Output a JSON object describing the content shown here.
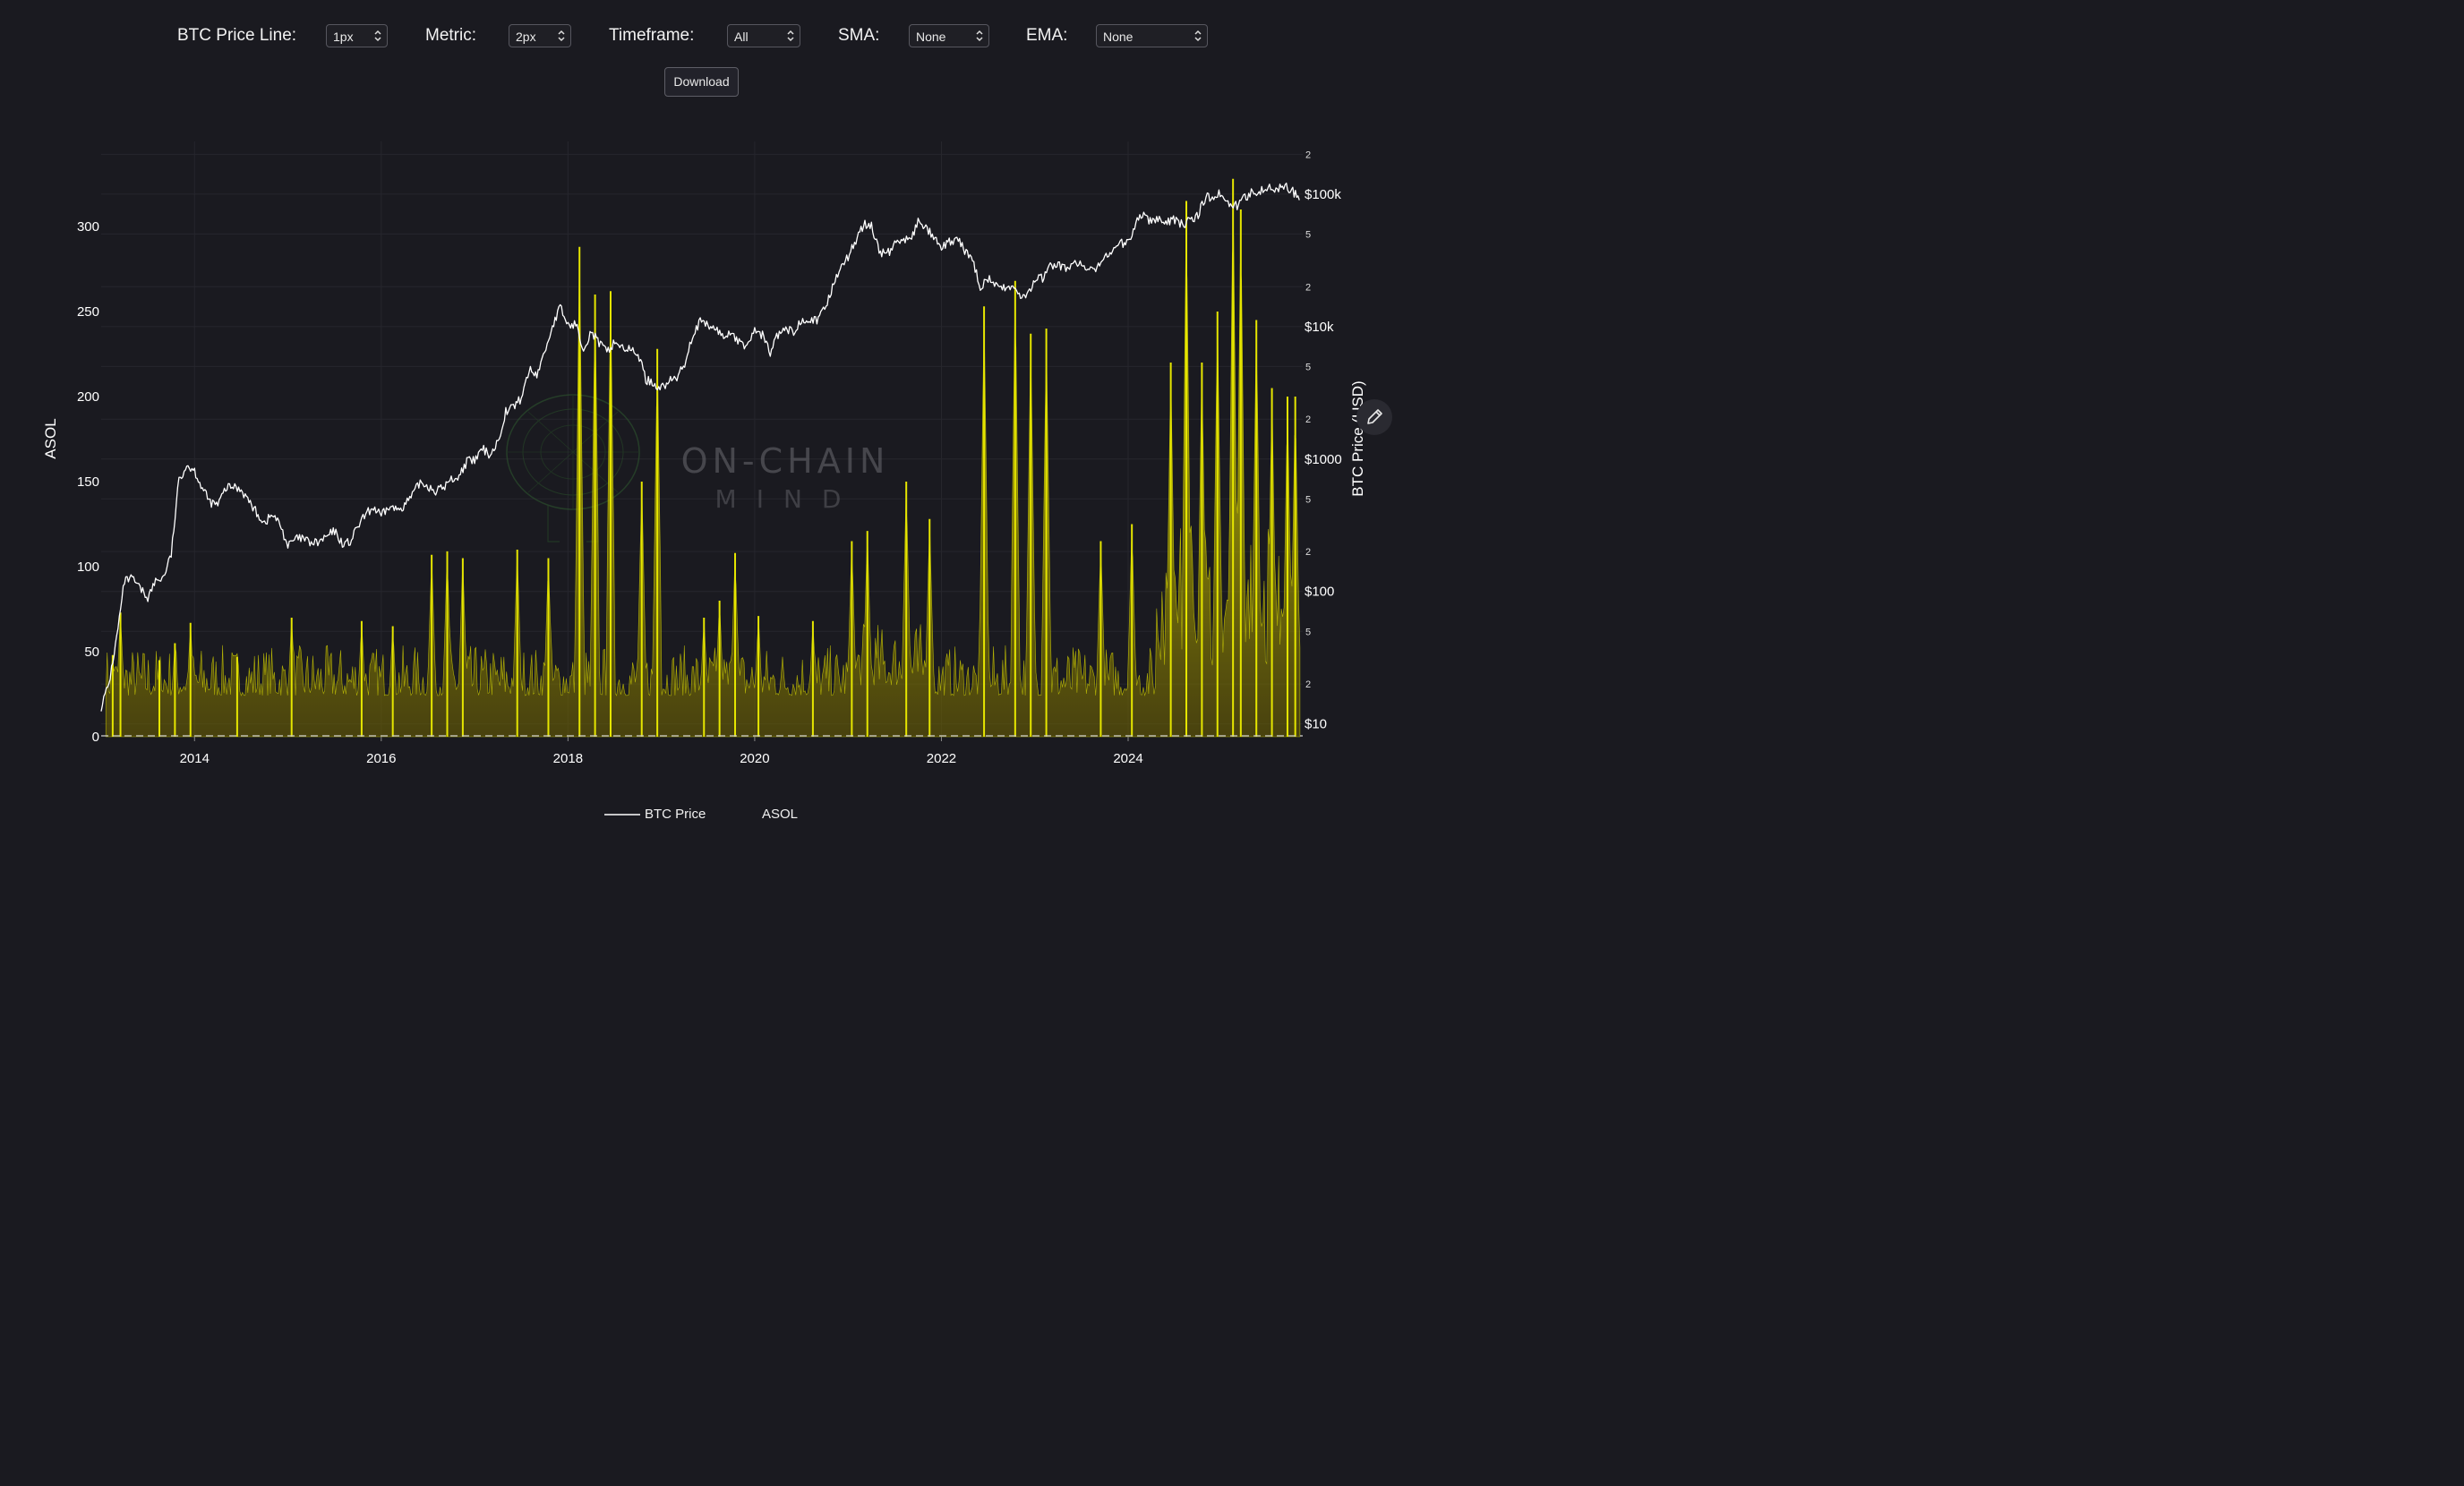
{
  "controls": {
    "btc_line": {
      "label": "BTC Price Line:",
      "value": "1px"
    },
    "metric": {
      "label": "Metric:",
      "value": "2px"
    },
    "timeframe": {
      "label": "Timeframe:",
      "value": "All"
    },
    "sma": {
      "label": "SMA:",
      "value": "None"
    },
    "ema": {
      "label": "EMA:",
      "value": "None"
    },
    "download_label": "Download"
  },
  "watermark": {
    "line1": "ON-CHAIN",
    "line2": "MIND"
  },
  "colors": {
    "background": "#1a1a20",
    "price_line": "#ffffff",
    "metric": "#e6e600",
    "grid": "#26262d"
  },
  "chart_data": {
    "type": "line",
    "title": "",
    "xlabel": "",
    "x_ticks": [
      "2014",
      "2016",
      "2018",
      "2020",
      "2022",
      "2024"
    ],
    "x_range": [
      "2013-01",
      "2025-11"
    ],
    "y_left": {
      "label": "ASOL",
      "range": [
        0,
        350
      ],
      "ticks": [
        0,
        50,
        100,
        150,
        200,
        250,
        300
      ]
    },
    "y_right": {
      "label": "BTC Price (USD)",
      "scale": "log",
      "range": [
        8,
        250000
      ],
      "major_ticks": [
        {
          "value": 10,
          "label": "$10"
        },
        {
          "value": 100,
          "label": "$100"
        },
        {
          "value": 1000,
          "label": "$1000"
        },
        {
          "value": 10000,
          "label": "$10k"
        },
        {
          "value": 100000,
          "label": "$100k"
        }
      ],
      "minor_ticks": [
        {
          "value": 20,
          "label": "2"
        },
        {
          "value": 50,
          "label": "5"
        },
        {
          "value": 200,
          "label": "2"
        },
        {
          "value": 500,
          "label": "5"
        },
        {
          "value": 2000,
          "label": "2"
        },
        {
          "value": 5000,
          "label": "5"
        },
        {
          "value": 20000,
          "label": "2"
        },
        {
          "value": 50000,
          "label": "5"
        },
        {
          "value": 200000,
          "label": "2"
        }
      ]
    },
    "legend": {
      "position": "bottom-center",
      "entries": [
        "BTC Price",
        "ASOL"
      ]
    },
    "grid": true,
    "series": [
      {
        "name": "BTC Price",
        "axis": "right",
        "points": [
          [
            "2013-01",
            13.5
          ],
          [
            "2013-02",
            20
          ],
          [
            "2013-03",
            45
          ],
          [
            "2013-04",
            120
          ],
          [
            "2013-05",
            125
          ],
          [
            "2013-06",
            105
          ],
          [
            "2013-07",
            90
          ],
          [
            "2013-08",
            120
          ],
          [
            "2013-09",
            128
          ],
          [
            "2013-10",
            190
          ],
          [
            "2013-11",
            700
          ],
          [
            "2013-12",
            900
          ],
          [
            "2014-01",
            820
          ],
          [
            "2014-02",
            600
          ],
          [
            "2014-03",
            470
          ],
          [
            "2014-04",
            450
          ],
          [
            "2014-05",
            600
          ],
          [
            "2014-06",
            620
          ],
          [
            "2014-07",
            590
          ],
          [
            "2014-08",
            480
          ],
          [
            "2014-09",
            390
          ],
          [
            "2014-10",
            330
          ],
          [
            "2014-11",
            380
          ],
          [
            "2014-12",
            320
          ],
          [
            "2015-01",
            220
          ],
          [
            "2015-02",
            250
          ],
          [
            "2015-03",
            250
          ],
          [
            "2015-04",
            230
          ],
          [
            "2015-05",
            235
          ],
          [
            "2015-06",
            260
          ],
          [
            "2015-07",
            285
          ],
          [
            "2015-08",
            230
          ],
          [
            "2015-09",
            235
          ],
          [
            "2015-10",
            310
          ],
          [
            "2015-11",
            380
          ],
          [
            "2015-12",
            430
          ],
          [
            "2016-01",
            370
          ],
          [
            "2016-02",
            435
          ],
          [
            "2016-03",
            415
          ],
          [
            "2016-04",
            450
          ],
          [
            "2016-05",
            530
          ],
          [
            "2016-06",
            670
          ],
          [
            "2016-07",
            625
          ],
          [
            "2016-08",
            575
          ],
          [
            "2016-09",
            610
          ],
          [
            "2016-10",
            700
          ],
          [
            "2016-11",
            740
          ],
          [
            "2016-12",
            960
          ],
          [
            "2017-01",
            970
          ],
          [
            "2017-02",
            1190
          ],
          [
            "2017-03",
            1080
          ],
          [
            "2017-04",
            1350
          ],
          [
            "2017-05",
            2300
          ],
          [
            "2017-06",
            2480
          ],
          [
            "2017-07",
            2880
          ],
          [
            "2017-08",
            4700
          ],
          [
            "2017-09",
            4340
          ],
          [
            "2017-10",
            6400
          ],
          [
            "2017-11",
            10000
          ],
          [
            "2017-12",
            14000
          ],
          [
            "2018-01",
            10200
          ],
          [
            "2018-02",
            10400
          ],
          [
            "2018-03",
            6900
          ],
          [
            "2018-04",
            9200
          ],
          [
            "2018-05",
            7500
          ],
          [
            "2018-06",
            6400
          ],
          [
            "2018-07",
            7700
          ],
          [
            "2018-08",
            7000
          ],
          [
            "2018-09",
            6600
          ],
          [
            "2018-10",
            6300
          ],
          [
            "2018-11",
            4000
          ],
          [
            "2018-12",
            3700
          ],
          [
            "2019-01",
            3450
          ],
          [
            "2019-02",
            3850
          ],
          [
            "2019-03",
            4100
          ],
          [
            "2019-04",
            5300
          ],
          [
            "2019-05",
            8600
          ],
          [
            "2019-06",
            10800
          ],
          [
            "2019-07",
            10100
          ],
          [
            "2019-08",
            9600
          ],
          [
            "2019-09",
            8300
          ],
          [
            "2019-10",
            9200
          ],
          [
            "2019-11",
            7500
          ],
          [
            "2019-12",
            7200
          ],
          [
            "2020-01",
            9350
          ],
          [
            "2020-02",
            8600
          ],
          [
            "2020-03",
            6400
          ],
          [
            "2020-04",
            8700
          ],
          [
            "2020-05",
            9450
          ],
          [
            "2020-06",
            9100
          ],
          [
            "2020-07",
            11300
          ],
          [
            "2020-08",
            11700
          ],
          [
            "2020-09",
            10800
          ],
          [
            "2020-10",
            13800
          ],
          [
            "2020-11",
            19700
          ],
          [
            "2020-12",
            29000
          ],
          [
            "2021-01",
            33100
          ],
          [
            "2021-02",
            45200
          ],
          [
            "2021-03",
            58800
          ],
          [
            "2021-04",
            57700
          ],
          [
            "2021-05",
            37300
          ],
          [
            "2021-06",
            35000
          ],
          [
            "2021-07",
            41500
          ],
          [
            "2021-08",
            47100
          ],
          [
            "2021-09",
            43800
          ],
          [
            "2021-10",
            61300
          ],
          [
            "2021-11",
            57000
          ],
          [
            "2021-12",
            46300
          ],
          [
            "2022-01",
            38500
          ],
          [
            "2022-02",
            43200
          ],
          [
            "2022-03",
            45500
          ],
          [
            "2022-04",
            37700
          ],
          [
            "2022-05",
            31800
          ],
          [
            "2022-06",
            19900
          ],
          [
            "2022-07",
            23300
          ],
          [
            "2022-08",
            20000
          ],
          [
            "2022-09",
            19400
          ],
          [
            "2022-10",
            20500
          ],
          [
            "2022-11",
            17200
          ],
          [
            "2022-12",
            16500
          ],
          [
            "2023-01",
            23100
          ],
          [
            "2023-02",
            23100
          ],
          [
            "2023-03",
            28500
          ],
          [
            "2023-04",
            29300
          ],
          [
            "2023-05",
            27200
          ],
          [
            "2023-06",
            30500
          ],
          [
            "2023-07",
            29200
          ],
          [
            "2023-08",
            26000
          ],
          [
            "2023-09",
            27000
          ],
          [
            "2023-10",
            34500
          ],
          [
            "2023-11",
            37700
          ],
          [
            "2023-12",
            42300
          ],
          [
            "2024-01",
            42600
          ],
          [
            "2024-02",
            61200
          ],
          [
            "2024-03",
            71300
          ],
          [
            "2024-04",
            60600
          ],
          [
            "2024-05",
            67500
          ],
          [
            "2024-06",
            62700
          ],
          [
            "2024-07",
            64600
          ],
          [
            "2024-08",
            58900
          ],
          [
            "2024-09",
            63300
          ],
          [
            "2024-10",
            70200
          ],
          [
            "2024-11",
            96400
          ],
          [
            "2024-12",
            93400
          ],
          [
            "2025-01",
            102400
          ],
          [
            "2025-02",
            84300
          ],
          [
            "2025-03",
            82500
          ],
          [
            "2025-04",
            94200
          ],
          [
            "2025-05",
            104600
          ],
          [
            "2025-06",
            107100
          ],
          [
            "2025-07",
            115800
          ],
          [
            "2025-08",
            108200
          ],
          [
            "2025-09",
            114000
          ],
          [
            "2025-10",
            109500
          ],
          [
            "2025-11",
            90000
          ]
        ]
      },
      {
        "name": "ASOL",
        "axis": "left",
        "type": "area",
        "baseline_noise_approx": 35,
        "spikes": [
          [
            "2013-02",
            48
          ],
          [
            "2013-03",
            73
          ],
          [
            "2013-08",
            45
          ],
          [
            "2013-10",
            55
          ],
          [
            "2013-12",
            67
          ],
          [
            "2014-06",
            47
          ],
          [
            "2015-01",
            70
          ],
          [
            "2015-10",
            68
          ],
          [
            "2016-02",
            65
          ],
          [
            "2016-07",
            107
          ],
          [
            "2016-09",
            109
          ],
          [
            "2016-11",
            105
          ],
          [
            "2017-06",
            110
          ],
          [
            "2017-10",
            105
          ],
          [
            "2018-02",
            288
          ],
          [
            "2018-04",
            260
          ],
          [
            "2018-06",
            262
          ],
          [
            "2018-10",
            150
          ],
          [
            "2018-12",
            228
          ],
          [
            "2019-06",
            70
          ],
          [
            "2019-08",
            80
          ],
          [
            "2019-10",
            108
          ],
          [
            "2020-01",
            71
          ],
          [
            "2020-08",
            68
          ],
          [
            "2021-01",
            115
          ],
          [
            "2021-03",
            121
          ],
          [
            "2021-08",
            150
          ],
          [
            "2021-11",
            128
          ],
          [
            "2022-06",
            253
          ],
          [
            "2022-10",
            268
          ],
          [
            "2022-12",
            237
          ],
          [
            "2023-02",
            240
          ],
          [
            "2023-09",
            115
          ],
          [
            "2024-01",
            125
          ],
          [
            "2024-06",
            220
          ],
          [
            "2024-08",
            315
          ],
          [
            "2024-10",
            220
          ],
          [
            "2024-12",
            250
          ],
          [
            "2025-02",
            328
          ],
          [
            "2025-03",
            310
          ],
          [
            "2025-05",
            245
          ],
          [
            "2025-07",
            205
          ],
          [
            "2025-09",
            200
          ],
          [
            "2025-10",
            200
          ]
        ]
      }
    ]
  }
}
